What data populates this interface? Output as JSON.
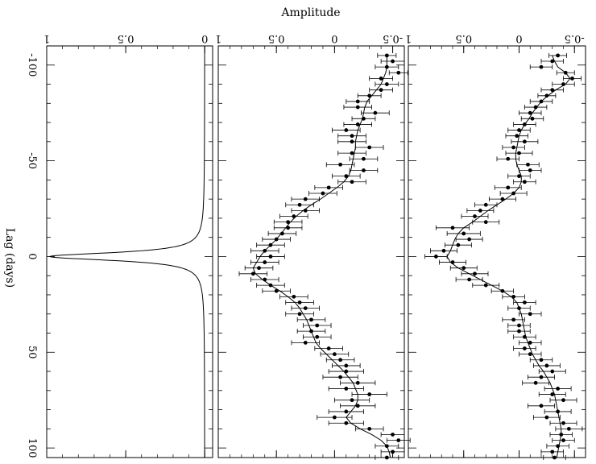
{
  "chart_data": {
    "type": "scatter",
    "orientation": "rotated-90-clockwise",
    "value_label": "Amplitude",
    "lag_label": "Lag (days)",
    "lag_range": [
      -110,
      105
    ],
    "lag_ticks": [
      -100,
      -50,
      0,
      50,
      100
    ],
    "panels": [
      {
        "name": "upper-panel",
        "amp_range": [
          -0.6,
          1.0
        ],
        "amp_ticks": [
          -0.5,
          0,
          0.5,
          1
        ],
        "line_style": "line-with-errorbars",
        "lag": [
          -105,
          -102,
          -99,
          -96,
          -93,
          -90,
          -87,
          -84,
          -81,
          -78,
          -75,
          -72,
          -69,
          -66,
          -63,
          -60,
          -57,
          -54,
          -51,
          -48,
          -45,
          -42,
          -39,
          -36,
          -33,
          -30,
          -27,
          -24,
          -21,
          -18,
          -15,
          -12,
          -9,
          -6,
          -3,
          0,
          3,
          6,
          9,
          12,
          15,
          18,
          21,
          24,
          27,
          30,
          33,
          36,
          39,
          42,
          45,
          48,
          51,
          54,
          57,
          60,
          63,
          66,
          69,
          72,
          75,
          78,
          81,
          84,
          87,
          90,
          93,
          96,
          99,
          102,
          105
        ],
        "amp": [
          -0.35,
          -0.3,
          -0.2,
          -0.42,
          -0.48,
          -0.4,
          -0.3,
          -0.25,
          -0.2,
          -0.15,
          -0.1,
          -0.12,
          -0.05,
          0.0,
          0.02,
          -0.05,
          0.05,
          0.0,
          0.1,
          -0.08,
          -0.1,
          0.0,
          -0.05,
          0.1,
          0.05,
          0.15,
          0.3,
          0.35,
          0.4,
          0.3,
          0.6,
          0.5,
          0.45,
          0.55,
          0.68,
          0.75,
          0.6,
          0.5,
          0.4,
          0.45,
          0.3,
          0.15,
          0.05,
          -0.05,
          0.0,
          -0.1,
          0.05,
          0.0,
          0.0,
          -0.05,
          -0.1,
          -0.05,
          -0.1,
          -0.2,
          -0.25,
          -0.3,
          -0.2,
          -0.15,
          -0.35,
          -0.3,
          -0.4,
          -0.2,
          -0.35,
          -0.25,
          -0.4,
          -0.45,
          -0.38,
          -0.4,
          -0.35,
          -0.3,
          -0.32
        ],
        "err": [
          0.08,
          0.1,
          0.1,
          0.08,
          0.08,
          0.1,
          0.1,
          0.08,
          0.1,
          0.1,
          0.1,
          0.1,
          0.1,
          0.1,
          0.1,
          0.12,
          0.1,
          0.12,
          0.1,
          0.1,
          0.1,
          0.1,
          0.1,
          0.12,
          0.12,
          0.12,
          0.1,
          0.12,
          0.12,
          0.12,
          0.15,
          0.15,
          0.12,
          0.12,
          0.12,
          0.1,
          0.12,
          0.12,
          0.12,
          0.12,
          0.12,
          0.1,
          0.1,
          0.1,
          0.1,
          0.1,
          0.1,
          0.1,
          0.1,
          0.1,
          0.1,
          0.1,
          0.1,
          0.1,
          0.12,
          0.12,
          0.12,
          0.12,
          0.12,
          0.12,
          0.12,
          0.12,
          0.12,
          0.12,
          0.12,
          0.12,
          0.1,
          0.1,
          0.1,
          0.1,
          0.1
        ],
        "model": [
          -0.3,
          -0.32,
          -0.35,
          -0.42,
          -0.46,
          -0.42,
          -0.33,
          -0.26,
          -0.2,
          -0.16,
          -0.12,
          -0.09,
          -0.05,
          -0.02,
          0.0,
          0.01,
          0.02,
          0.03,
          0.03,
          0.02,
          0.0,
          -0.02,
          -0.02,
          0.0,
          0.05,
          0.12,
          0.2,
          0.28,
          0.35,
          0.42,
          0.5,
          0.55,
          0.58,
          0.6,
          0.62,
          0.65,
          0.62,
          0.55,
          0.45,
          0.35,
          0.25,
          0.15,
          0.07,
          0.02,
          0.0,
          -0.02,
          -0.03,
          -0.04,
          -0.05,
          -0.06,
          -0.08,
          -0.1,
          -0.12,
          -0.15,
          -0.18,
          -0.22,
          -0.25,
          -0.28,
          -0.3,
          -0.32,
          -0.33,
          -0.34,
          -0.35,
          -0.36,
          -0.37,
          -0.38,
          -0.38,
          -0.37,
          -0.36,
          -0.35,
          -0.34
        ]
      },
      {
        "name": "middle-panel",
        "amp_range": [
          -0.6,
          1.0
        ],
        "amp_ticks": [
          -0.5,
          0,
          0.5,
          1
        ],
        "line_style": "line-with-errorbars",
        "lag": [
          -105,
          -102,
          -99,
          -96,
          -93,
          -90,
          -87,
          -84,
          -81,
          -78,
          -75,
          -72,
          -69,
          -66,
          -63,
          -60,
          -57,
          -54,
          -51,
          -48,
          -45,
          -42,
          -39,
          -36,
          -33,
          -30,
          -27,
          -24,
          -21,
          -18,
          -15,
          -12,
          -9,
          -6,
          -3,
          0,
          3,
          6,
          9,
          12,
          15,
          18,
          21,
          24,
          27,
          30,
          33,
          36,
          39,
          42,
          45,
          48,
          51,
          54,
          57,
          60,
          63,
          66,
          69,
          72,
          75,
          78,
          81,
          84,
          87,
          90,
          93,
          96,
          99,
          102,
          105
        ],
        "amp": [
          -0.45,
          -0.5,
          -0.45,
          -0.55,
          -0.4,
          -0.45,
          -0.4,
          -0.3,
          -0.2,
          -0.2,
          -0.35,
          -0.25,
          -0.2,
          -0.1,
          -0.15,
          -0.15,
          -0.3,
          -0.15,
          -0.25,
          -0.05,
          -0.25,
          -0.1,
          -0.15,
          0.05,
          0.1,
          0.25,
          0.3,
          0.25,
          0.35,
          0.4,
          0.4,
          0.45,
          0.5,
          0.55,
          0.6,
          0.55,
          0.6,
          0.65,
          0.7,
          0.6,
          0.55,
          0.5,
          0.35,
          0.3,
          0.25,
          0.3,
          0.2,
          0.15,
          0.2,
          0.15,
          0.25,
          0.05,
          0.0,
          -0.05,
          -0.1,
          -0.1,
          -0.05,
          -0.2,
          -0.1,
          -0.3,
          -0.15,
          -0.2,
          -0.1,
          0.0,
          -0.1,
          -0.3,
          -0.5,
          -0.55,
          -0.45,
          -0.5,
          -0.45
        ],
        "err": [
          0.08,
          0.1,
          0.1,
          0.08,
          0.1,
          0.1,
          0.1,
          0.1,
          0.1,
          0.12,
          0.12,
          0.1,
          0.12,
          0.12,
          0.12,
          0.12,
          0.12,
          0.12,
          0.12,
          0.12,
          0.12,
          0.12,
          0.12,
          0.12,
          0.12,
          0.12,
          0.12,
          0.12,
          0.12,
          0.12,
          0.12,
          0.12,
          0.12,
          0.12,
          0.12,
          0.12,
          0.12,
          0.12,
          0.12,
          0.12,
          0.12,
          0.12,
          0.12,
          0.12,
          0.12,
          0.12,
          0.12,
          0.12,
          0.12,
          0.12,
          0.12,
          0.12,
          0.12,
          0.12,
          0.12,
          0.15,
          0.15,
          0.15,
          0.15,
          0.15,
          0.15,
          0.15,
          0.15,
          0.15,
          0.15,
          0.12,
          0.1,
          0.1,
          0.1,
          0.1,
          0.1
        ],
        "model": [
          -0.45,
          -0.45,
          -0.45,
          -0.44,
          -0.42,
          -0.4,
          -0.36,
          -0.32,
          -0.28,
          -0.26,
          -0.25,
          -0.24,
          -0.22,
          -0.2,
          -0.19,
          -0.18,
          -0.18,
          -0.17,
          -0.16,
          -0.15,
          -0.14,
          -0.12,
          -0.08,
          -0.02,
          0.05,
          0.12,
          0.2,
          0.27,
          0.33,
          0.38,
          0.42,
          0.46,
          0.5,
          0.55,
          0.6,
          0.64,
          0.67,
          0.7,
          0.68,
          0.62,
          0.55,
          0.47,
          0.4,
          0.34,
          0.3,
          0.27,
          0.24,
          0.22,
          0.2,
          0.18,
          0.16,
          0.12,
          0.07,
          0.02,
          -0.03,
          -0.08,
          -0.12,
          -0.16,
          -0.18,
          -0.2,
          -0.2,
          -0.18,
          -0.14,
          -0.1,
          -0.14,
          -0.22,
          -0.32,
          -0.4,
          -0.45,
          -0.47,
          -0.48
        ]
      },
      {
        "name": "bottom-panel",
        "amp_range": [
          -0.05,
          1.0
        ],
        "amp_ticks": [
          0,
          0.5,
          1
        ],
        "line_style": "line",
        "peak_lag": 0,
        "peak_amp": 1.0,
        "half_width_days": 2.5
      }
    ]
  }
}
